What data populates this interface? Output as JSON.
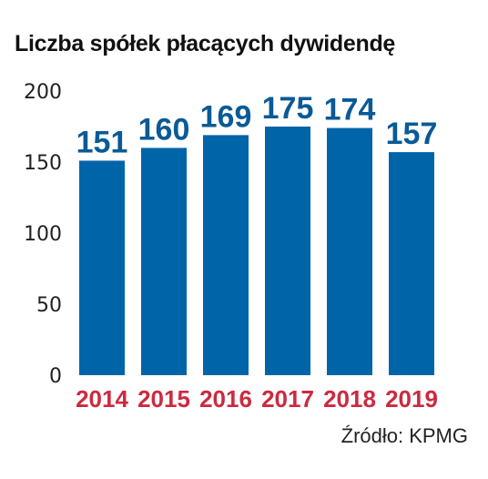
{
  "chart_data": {
    "type": "bar",
    "title": "Liczba spółek płacących dywidendę",
    "categories": [
      "2014",
      "2015",
      "2016",
      "2017",
      "2018",
      "2019"
    ],
    "values": [
      151,
      160,
      169,
      175,
      174,
      157
    ],
    "ylim": [
      0,
      200
    ],
    "yticks": [
      0,
      50,
      100,
      150,
      200
    ],
    "grid": false,
    "legend": "none",
    "xlabel": "",
    "ylabel": "",
    "source": "Źródło: KPMG"
  },
  "colors": {
    "bar": "#0064a8",
    "value_label": "#0a5a96",
    "category_label": "#cc2a3f"
  }
}
